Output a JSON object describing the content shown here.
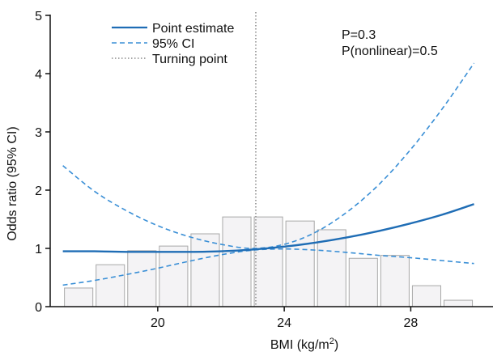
{
  "chart_data": {
    "type": "line",
    "xlabel": "BMI (kg/m",
    "xlabel_superscript": "2",
    "xlabel_suffix": ")",
    "ylabel": "Odds ratio (95% CI)",
    "xlim": [
      16.6,
      30.6
    ],
    "ylim": [
      0,
      5
    ],
    "x_ticks": [
      20,
      24,
      28
    ],
    "y_ticks": [
      0,
      1,
      2,
      3,
      4,
      5
    ],
    "grid": false,
    "legend": {
      "placement": "top-left",
      "entries": [
        {
          "label": "Point estimate",
          "style": "solid"
        },
        {
          "label": "95% CI",
          "style": "dashed"
        },
        {
          "label": "Turning point",
          "style": "dotted"
        }
      ]
    },
    "annotations": [
      "P=0.3",
      "P(nonlinear)=0.5"
    ],
    "turning_point_x": 23.1,
    "series": [
      {
        "label": "Point estimate",
        "x": [
          17.0,
          18.0,
          19.0,
          20.0,
          21.0,
          22.0,
          23.0,
          24.0,
          25.0,
          26.0,
          27.0,
          28.0,
          29.0,
          30.0
        ],
        "y": [
          0.95,
          0.95,
          0.94,
          0.94,
          0.94,
          0.95,
          0.98,
          1.03,
          1.1,
          1.19,
          1.3,
          1.43,
          1.58,
          1.76
        ]
      },
      {
        "label": "95% CI upper",
        "x": [
          17.0,
          18.0,
          19.0,
          20.0,
          21.0,
          22.0,
          23.0,
          24.0,
          25.0,
          26.0,
          27.0,
          28.0,
          29.0,
          30.0
        ],
        "y": [
          2.42,
          1.98,
          1.65,
          1.39,
          1.2,
          1.07,
          1.0,
          1.07,
          1.28,
          1.63,
          2.1,
          2.7,
          3.4,
          4.18
        ]
      },
      {
        "label": "95% CI lower",
        "x": [
          17.0,
          18.0,
          19.0,
          20.0,
          21.0,
          22.0,
          23.0,
          24.0,
          25.0,
          26.0,
          27.0,
          28.0,
          29.0,
          30.0
        ],
        "y": [
          0.37,
          0.45,
          0.55,
          0.66,
          0.78,
          0.89,
          0.97,
          0.99,
          0.97,
          0.93,
          0.88,
          0.84,
          0.79,
          0.74
        ]
      }
    ],
    "histogram": {
      "bins": [
        {
          "x0": 17.0,
          "x1": 18.0,
          "value": 0.32
        },
        {
          "x0": 18.0,
          "x1": 19.0,
          "value": 0.72
        },
        {
          "x0": 19.0,
          "x1": 20.0,
          "value": 0.96
        },
        {
          "x0": 20.0,
          "x1": 21.0,
          "value": 1.04
        },
        {
          "x0": 21.0,
          "x1": 22.0,
          "value": 1.25
        },
        {
          "x0": 22.0,
          "x1": 23.0,
          "value": 1.54
        },
        {
          "x0": 23.0,
          "x1": 24.0,
          "value": 1.54
        },
        {
          "x0": 24.0,
          "x1": 25.0,
          "value": 1.47
        },
        {
          "x0": 25.0,
          "x1": 26.0,
          "value": 1.32
        },
        {
          "x0": 26.0,
          "x1": 27.0,
          "value": 0.83
        },
        {
          "x0": 27.0,
          "x1": 28.0,
          "value": 0.88
        },
        {
          "x0": 28.0,
          "x1": 29.0,
          "value": 0.36
        },
        {
          "x0": 29.0,
          "x1": 30.0,
          "value": 0.11
        }
      ]
    },
    "colors": {
      "line": "#1f6db5",
      "ci": "#3a8fd6",
      "turning": "#9a9a9a",
      "bar_fill": "#f4f3f5",
      "bar_stroke": "#a8a8a8",
      "axis": "#111111"
    }
  }
}
